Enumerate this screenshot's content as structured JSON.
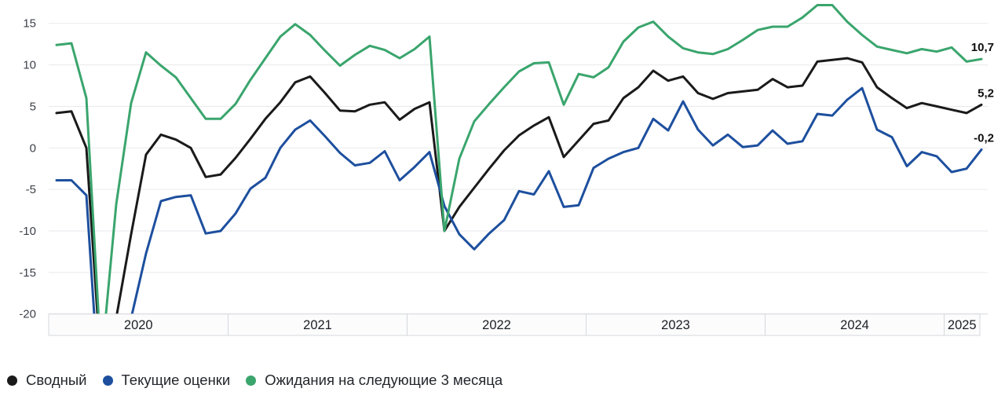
{
  "chart_data": {
    "type": "line",
    "title": "",
    "x_unit": "month",
    "x_start": "2020-01",
    "x_end": "2025-03",
    "x_tick_years": [
      "2020",
      "2021",
      "2022",
      "2023",
      "2024",
      "2025"
    ],
    "ylim": [
      -20,
      15
    ],
    "y_ticks": [
      15,
      10,
      5,
      0,
      -5,
      -10,
      -15,
      -20
    ],
    "y_tick_labels": [
      "15",
      "10",
      "5",
      "0",
      "-5",
      "-10",
      "-15",
      "-20"
    ],
    "grid": "horizontal",
    "legend_position": "bottom-left",
    "values_below_axis_clipped": true,
    "series": [
      {
        "key": "composite",
        "name": "Сводный",
        "color": "#1a1a1a",
        "end_label": "5,2",
        "last_value": 5.2,
        "values": [
          4.2,
          4.4,
          0.0,
          -27.0,
          -20.5,
          -10.4,
          -0.8,
          1.6,
          1.0,
          0.0,
          -3.5,
          -3.2,
          -1.2,
          1.1,
          3.5,
          5.5,
          7.9,
          8.6,
          6.6,
          4.5,
          4.4,
          5.2,
          5.5,
          3.4,
          4.7,
          5.5,
          -10.0,
          -7.1,
          -4.8,
          -2.5,
          -0.3,
          1.5,
          2.7,
          3.7,
          -1.1,
          0.9,
          2.9,
          3.3,
          6.0,
          7.3,
          9.3,
          8.1,
          8.6,
          6.6,
          5.9,
          6.6,
          6.8,
          7.0,
          8.3,
          7.3,
          7.5,
          10.4,
          10.6,
          10.8,
          10.3,
          7.3,
          6.0,
          4.8,
          5.4,
          5.0,
          4.6,
          4.2,
          5.2
        ]
      },
      {
        "key": "current",
        "name": "Текущие оценки",
        "color": "#1d4f9e",
        "end_label": "-0,2",
        "last_value": -0.2,
        "values": [
          -3.9,
          -3.9,
          -5.7,
          -33.0,
          -30.0,
          -20.5,
          -12.7,
          -6.4,
          -5.9,
          -5.7,
          -10.3,
          -10.0,
          -7.9,
          -4.9,
          -3.6,
          0.0,
          2.2,
          3.3,
          1.4,
          -0.6,
          -2.1,
          -1.8,
          -0.4,
          -3.9,
          -2.3,
          -0.5,
          -7.0,
          -10.4,
          -12.2,
          -10.3,
          -8.7,
          -5.2,
          -5.6,
          -2.8,
          -7.1,
          -6.9,
          -2.4,
          -1.3,
          -0.5,
          0.0,
          3.5,
          2.1,
          5.6,
          2.2,
          0.3,
          1.6,
          0.1,
          0.3,
          2.1,
          0.5,
          0.8,
          4.1,
          3.9,
          5.8,
          7.2,
          2.2,
          1.3,
          -2.2,
          -0.5,
          -1.0,
          -2.9,
          -2.5,
          -0.2
        ]
      },
      {
        "key": "expectations",
        "name": "Ожидания на следующие 3 месяца",
        "color": "#3aa56d",
        "end_label": "10,7",
        "last_value": 10.7,
        "values": [
          12.4,
          12.6,
          6.0,
          -26.0,
          -6.8,
          5.4,
          11.5,
          9.9,
          8.5,
          6.0,
          3.5,
          3.5,
          5.3,
          8.2,
          10.8,
          13.4,
          14.9,
          13.6,
          11.7,
          9.9,
          11.2,
          12.3,
          11.8,
          10.8,
          11.9,
          13.4,
          -10.0,
          -1.3,
          3.2,
          5.3,
          7.3,
          9.2,
          10.2,
          10.3,
          5.2,
          8.9,
          8.5,
          9.7,
          12.8,
          14.5,
          15.2,
          13.4,
          12.0,
          11.5,
          11.3,
          11.9,
          13.0,
          14.2,
          14.6,
          14.6,
          15.7,
          17.2,
          17.2,
          15.2,
          13.6,
          12.2,
          11.8,
          11.4,
          11.9,
          11.6,
          12.1,
          10.4,
          10.7
        ]
      }
    ]
  },
  "colors": {
    "grid_line": "#e9eaec",
    "axis_band_border": "#d6d8dc",
    "axis_band_fill": "#fcfcfd",
    "background": "#ffffff"
  },
  "legend": {
    "items": [
      {
        "key": "composite",
        "label": "Сводный",
        "color": "#1a1a1a"
      },
      {
        "key": "current",
        "label": "Текущие оценки",
        "color": "#1d4f9e"
      },
      {
        "key": "expectations",
        "label": "Ожидания на следующие 3 месяца",
        "color": "#3aa56d"
      }
    ]
  }
}
